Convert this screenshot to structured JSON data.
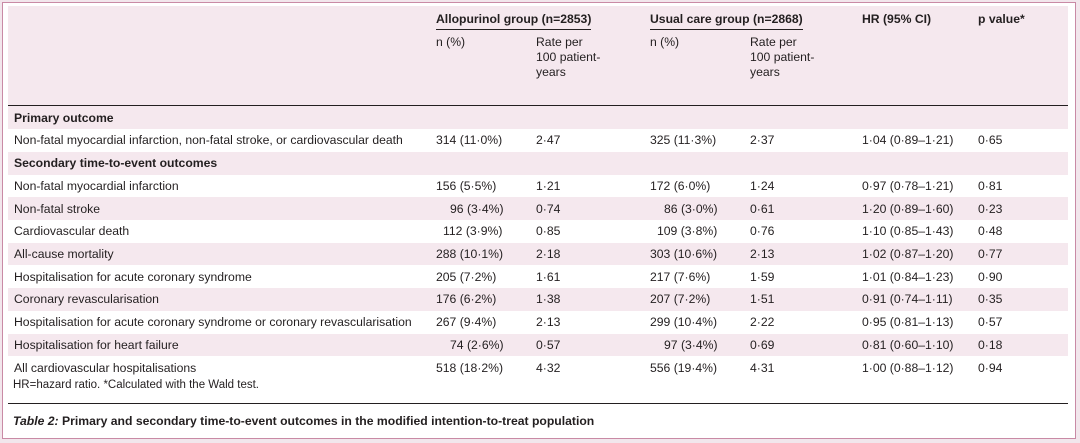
{
  "header": {
    "allopurinol_group": "Allopurinol group (n=2853)",
    "usual_care_group": "Usual care group (n=2868)",
    "hr": "HR (95% CI)",
    "p_value": "p value*",
    "sub_n": "n (%)",
    "sub_rate_line1": "Rate per",
    "sub_rate_line2": "100 patient-",
    "sub_rate_line3": "years"
  },
  "primary": {
    "heading": "Primary outcome",
    "rows": [
      {
        "label": "Non-fatal myocardial infarction, non-fatal stroke, or cardiovascular death",
        "a_n": "314 (11·0%)",
        "a_rate": "2·47",
        "u_n": "325 (11·3%)",
        "u_rate": "2·37",
        "hr": "1·04 (0·89–1·21)",
        "p": "0·65"
      }
    ]
  },
  "secondary": {
    "heading": "Secondary time-to-event outcomes",
    "rows": [
      {
        "label": "Non-fatal myocardial infarction",
        "a_n": "156 (5·5%)",
        "a_rate": "1·21",
        "u_n": "172 (6·0%)",
        "u_rate": "1·24",
        "hr": "0·97 (0·78–1·21)",
        "p": "0·81"
      },
      {
        "label": "Non-fatal stroke",
        "a_n": "96 (3·4%)",
        "a_rate": "0·74",
        "u_n": "86 (3·0%)",
        "u_rate": "0·61",
        "hr": "1·20 (0·89–1·60)",
        "p": "0·23"
      },
      {
        "label": "Cardiovascular death",
        "a_n": "112 (3·9%)",
        "a_rate": "0·85",
        "u_n": "109 (3·8%)",
        "u_rate": "0·76",
        "hr": "1·10 (0·85–1·43)",
        "p": "0·48"
      },
      {
        "label": "All-cause mortality",
        "a_n": "288 (10·1%)",
        "a_rate": "2·18",
        "u_n": "303 (10·6%)",
        "u_rate": "2·13",
        "hr": "1·02 (0·87–1·20)",
        "p": "0·77"
      },
      {
        "label": "Hospitalisation for acute coronary syndrome",
        "a_n": "205 (7·2%)",
        "a_rate": "1·61",
        "u_n": "217 (7·6%)",
        "u_rate": "1·59",
        "hr": "1·01 (0·84–1·23)",
        "p": "0·90"
      },
      {
        "label": "Coronary revascularisation",
        "a_n": "176 (6·2%)",
        "a_rate": "1·38",
        "u_n": "207 (7·2%)",
        "u_rate": "1·51",
        "hr": "0·91 (0·74–1·11)",
        "p": "0·35"
      },
      {
        "label": "Hospitalisation for acute coronary syndrome or coronary revascularisation",
        "a_n": "267 (9·4%)",
        "a_rate": "2·13",
        "u_n": "299 (10·4%)",
        "u_rate": "2·22",
        "hr": "0·95 (0·81–1·13)",
        "p": "0·57"
      },
      {
        "label": "Hospitalisation for heart failure",
        "a_n": "74 (2·6%)",
        "a_rate": "0·57",
        "u_n": "97 (3·4%)",
        "u_rate": "0·69",
        "hr": "0·81 (0·60–1·10)",
        "p": "0·18"
      },
      {
        "label": "All cardiovascular hospitalisations",
        "a_n": "518 (18·2%)",
        "a_rate": "4·32",
        "u_n": "556 (19·4%)",
        "u_rate": "4·31",
        "hr": "1·00 (0·88–1·12)",
        "p": "0·94"
      }
    ]
  },
  "footnote": "HR=hazard ratio. *Calculated with the Wald test.",
  "caption": {
    "table_number": "Table 2:",
    "text": " Primary and secondary time-to-event outcomes in the modified intention-to-treat population"
  },
  "colors": {
    "band": "#f5e8ee",
    "border": "#c98aa5"
  }
}
